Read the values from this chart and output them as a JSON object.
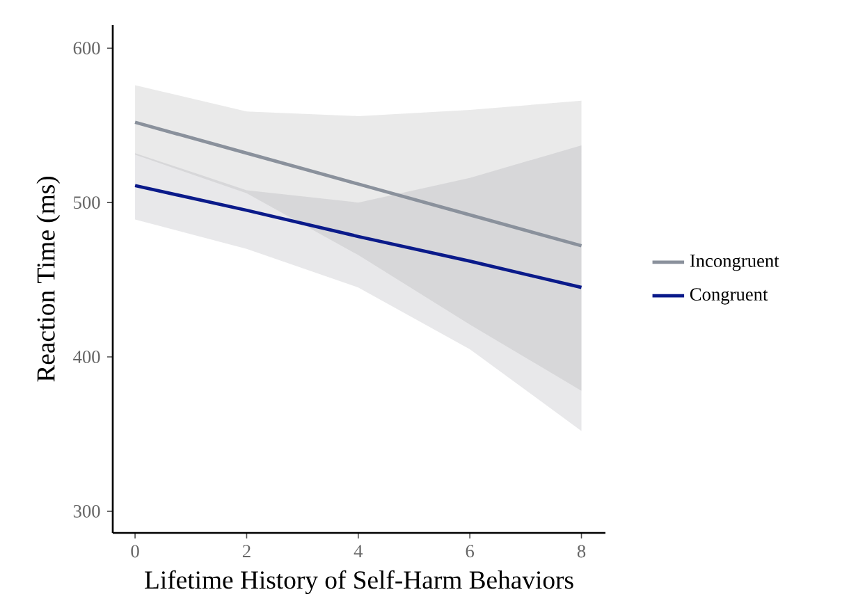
{
  "chart_data": {
    "type": "line",
    "xlabel": "Lifetime History of Self-Harm Behaviors",
    "ylabel": "Reaction Time (ms)",
    "xlim": [
      -0.4,
      8.43
    ],
    "ylim": [
      286,
      615
    ],
    "xticks": [
      0,
      2,
      4,
      6,
      8
    ],
    "yticks": [
      300,
      400,
      500,
      600
    ],
    "legend": "right",
    "series": [
      {
        "name": "Incongruent",
        "color": "#8a919c",
        "x": [
          0,
          2,
          4,
          6,
          8
        ],
        "values": [
          552,
          532,
          512,
          492,
          472
        ],
        "lower": [
          531,
          506,
          466,
          421,
          378
        ],
        "upper": [
          576,
          559,
          556,
          560,
          566
        ]
      },
      {
        "name": "Congruent",
        "color": "#0a1a8a",
        "x": [
          0,
          2,
          4,
          6,
          8
        ],
        "values": [
          511,
          495,
          478,
          462,
          445
        ],
        "lower": [
          489,
          470,
          445,
          405,
          352
        ],
        "upper": [
          532,
          508,
          500,
          516,
          537
        ]
      }
    ]
  }
}
